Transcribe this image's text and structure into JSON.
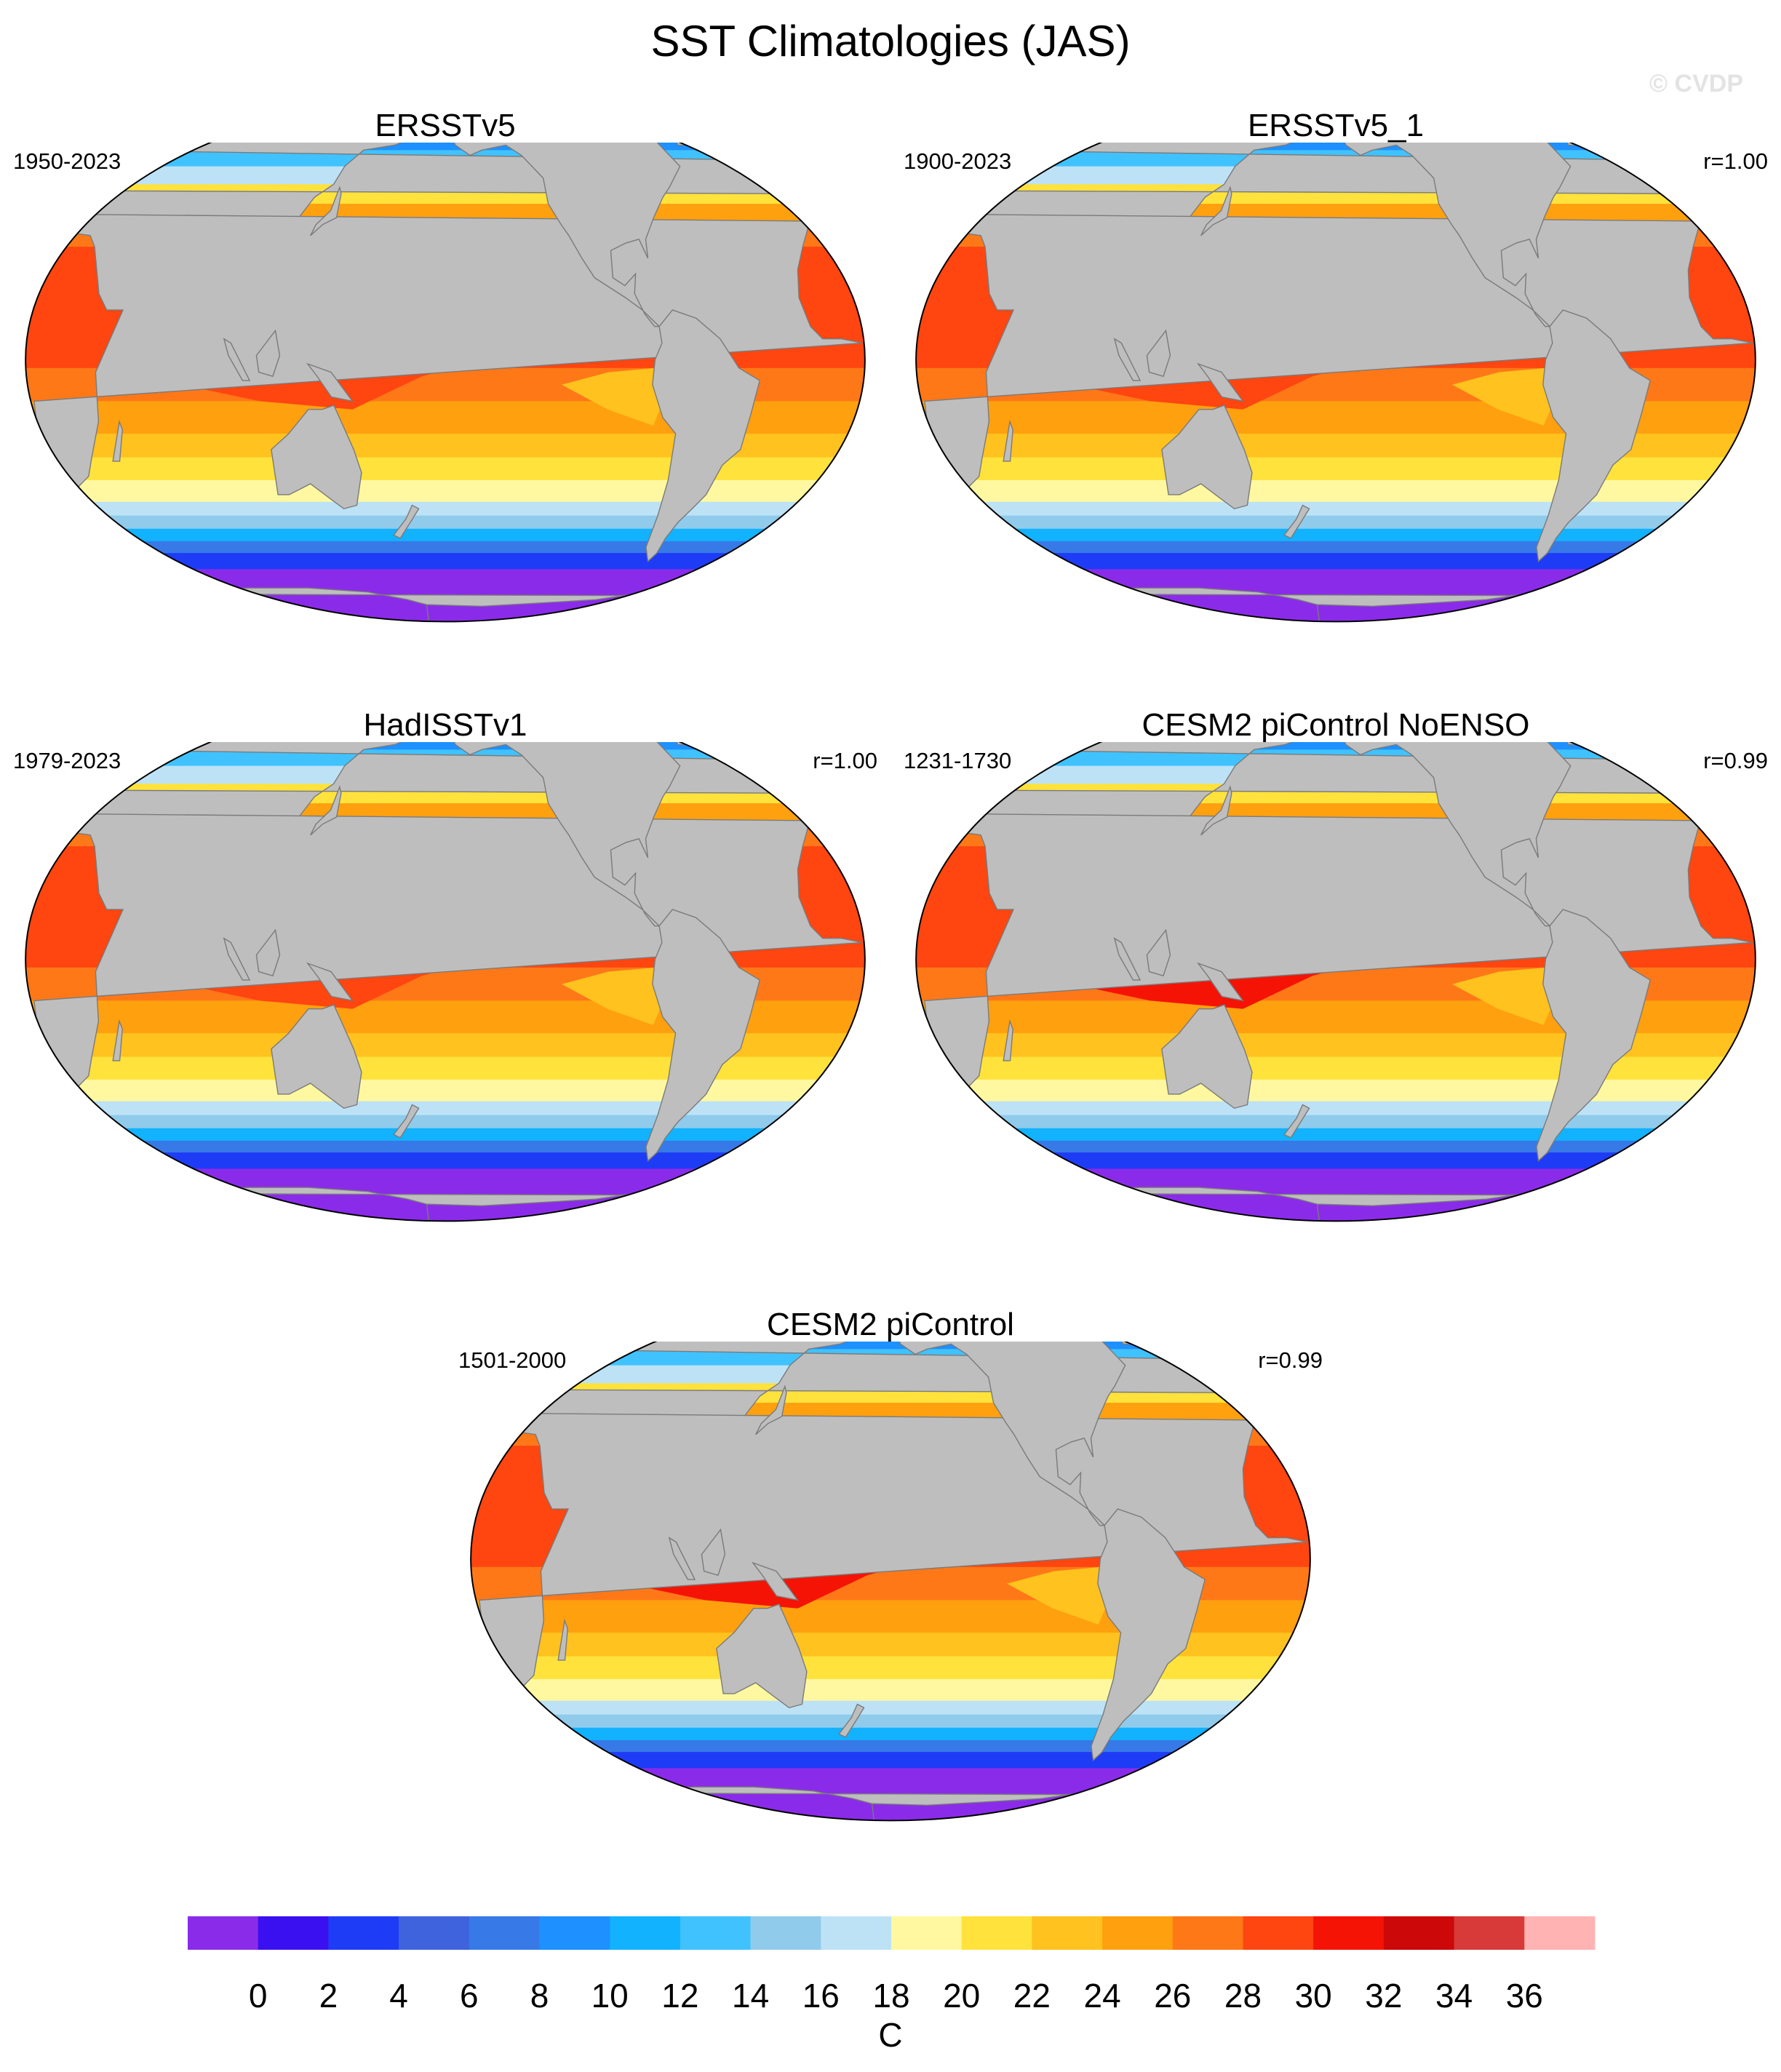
{
  "title": "SST Climatologies (JAS)",
  "watermark": "© CVDP",
  "panels": [
    {
      "title": "ERSSTv5",
      "period": "1950-2023",
      "corr": "",
      "model": false
    },
    {
      "title": "ERSSTv5_1",
      "period": "1900-2023",
      "corr": "r=1.00",
      "model": false
    },
    {
      "title": "HadISSTv1",
      "period": "1979-2023",
      "corr": "r=1.00",
      "model": false
    },
    {
      "title": "CESM2 piControl NoENSO",
      "period": "1231-1730",
      "corr": "r=0.99",
      "model": true
    },
    {
      "title": "CESM2 piControl",
      "period": "1501-2000",
      "corr": "r=0.99",
      "model": true
    }
  ],
  "colorbar": {
    "unit": "C",
    "labels": [
      "0",
      "2",
      "4",
      "6",
      "8",
      "10",
      "12",
      "14",
      "16",
      "18",
      "20",
      "22",
      "24",
      "26",
      "28",
      "30",
      "32",
      "34",
      "36"
    ],
    "colors": [
      "#8B2BEA",
      "#3B10F0",
      "#1E3CF5",
      "#3F63DC",
      "#3879E8",
      "#1E90FF",
      "#12B2FF",
      "#40C2FF",
      "#90CBEB",
      "#BDE2F6",
      "#FFF8A0",
      "#FFE23B",
      "#FFC21E",
      "#FFA00F",
      "#FF7818",
      "#FF4510",
      "#F51305",
      "#CC0808",
      "#D83A3A",
      "#FFB3B3"
    ]
  },
  "map_colors": {
    "land": "#BEBEBE",
    "outline": "#7a7a7a",
    "missing": "#FFFFFF"
  }
}
